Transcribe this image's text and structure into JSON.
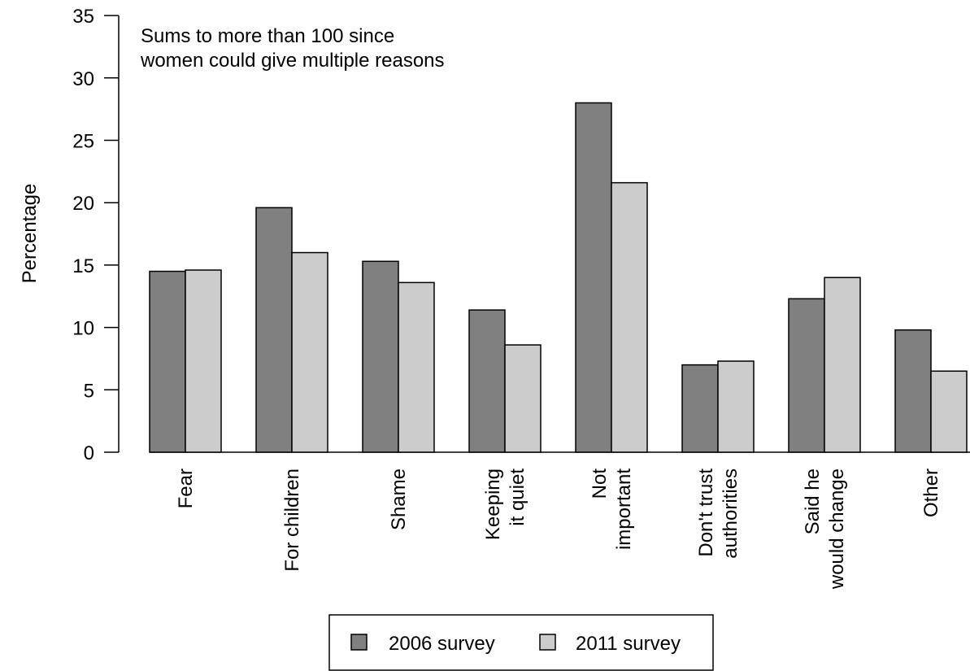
{
  "chart_data": {
    "type": "bar",
    "ylabel": "Percentage",
    "ylim": [
      0,
      35
    ],
    "yticks": [
      0,
      5,
      10,
      15,
      20,
      25,
      30,
      35
    ],
    "categories": [
      [
        "Fear"
      ],
      [
        "For children"
      ],
      [
        "Shame"
      ],
      [
        "Keeping",
        "it quiet"
      ],
      [
        "Not",
        "important"
      ],
      [
        "Don't trust",
        "authorities"
      ],
      [
        "Said he",
        "would change"
      ],
      [
        "Other"
      ]
    ],
    "series": [
      {
        "name": "2006 survey",
        "color": "#808080",
        "values": [
          14.5,
          19.6,
          15.3,
          11.4,
          28.0,
          7.0,
          12.3,
          9.8
        ]
      },
      {
        "name": "2011 survey",
        "color": "#cccccc",
        "values": [
          14.6,
          16.0,
          13.6,
          8.6,
          21.6,
          7.3,
          14.0,
          6.5
        ]
      }
    ],
    "annotation": [
      "Sums to more than 100 since",
      "women could give multiple reasons"
    ],
    "grid": false,
    "legend_position": "bottom"
  }
}
